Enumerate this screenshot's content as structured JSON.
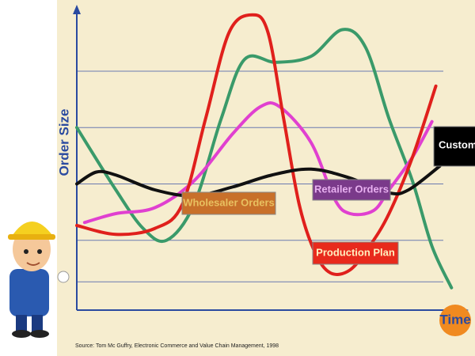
{
  "chart_data": {
    "type": "line",
    "x_label": "Time",
    "y_label": "Order Size",
    "source": "Source: Tom Mc Guffry, Electronic Commerce and Value Chain Management, 1998",
    "xlim": [
      0,
      100
    ],
    "ylim": [
      0,
      100
    ],
    "ygrid": [
      9,
      23,
      42,
      61,
      80
    ],
    "series": [
      {
        "name": "Wholesaler Orders",
        "color": "#3a9a6a",
        "box_color": "#c8702a",
        "text_color": "#e8c060",
        "x": [
          0,
          10,
          17,
          23,
          30,
          37,
          43,
          51,
          60,
          68,
          74,
          80,
          86,
          91,
          96
        ],
        "values": [
          61,
          40,
          27,
          23,
          35,
          64,
          84,
          83,
          85,
          94,
          88,
          64,
          43,
          21,
          7
        ]
      },
      {
        "name": "Retailer Orders",
        "color": "#e040d0",
        "box_color": "#7a3a8a",
        "text_color": "#e8b0f0",
        "x": [
          2,
          10,
          20,
          30,
          40,
          47,
          52,
          60,
          66,
          70,
          76,
          80,
          86,
          91
        ],
        "values": [
          29,
          32,
          34,
          43,
          59,
          68,
          68,
          56,
          37,
          32,
          33,
          40,
          51,
          63
        ]
      },
      {
        "name": "Production Plan",
        "color": "#e0201c",
        "box_color": "#e82a1c",
        "text_color": "#fff0c0",
        "x": [
          0,
          10,
          20,
          27,
          33,
          39,
          45,
          49,
          53,
          57,
          61,
          65,
          70,
          75,
          80,
          86,
          92
        ],
        "values": [
          28,
          25,
          27,
          35,
          64,
          93,
          99,
          93,
          64,
          35,
          19,
          12,
          13,
          21,
          32,
          51,
          75
        ]
      },
      {
        "name": "Customer Demand",
        "color": "#111111",
        "box_color": "#000000",
        "text_color": "#ffffff",
        "x": [
          0,
          5,
          10,
          20,
          30,
          40,
          50,
          60,
          70,
          80,
          85,
          93
        ],
        "values": [
          42,
          46,
          45,
          40,
          38,
          41,
          45,
          47,
          44,
          39,
          40,
          48
        ]
      }
    ]
  }
}
